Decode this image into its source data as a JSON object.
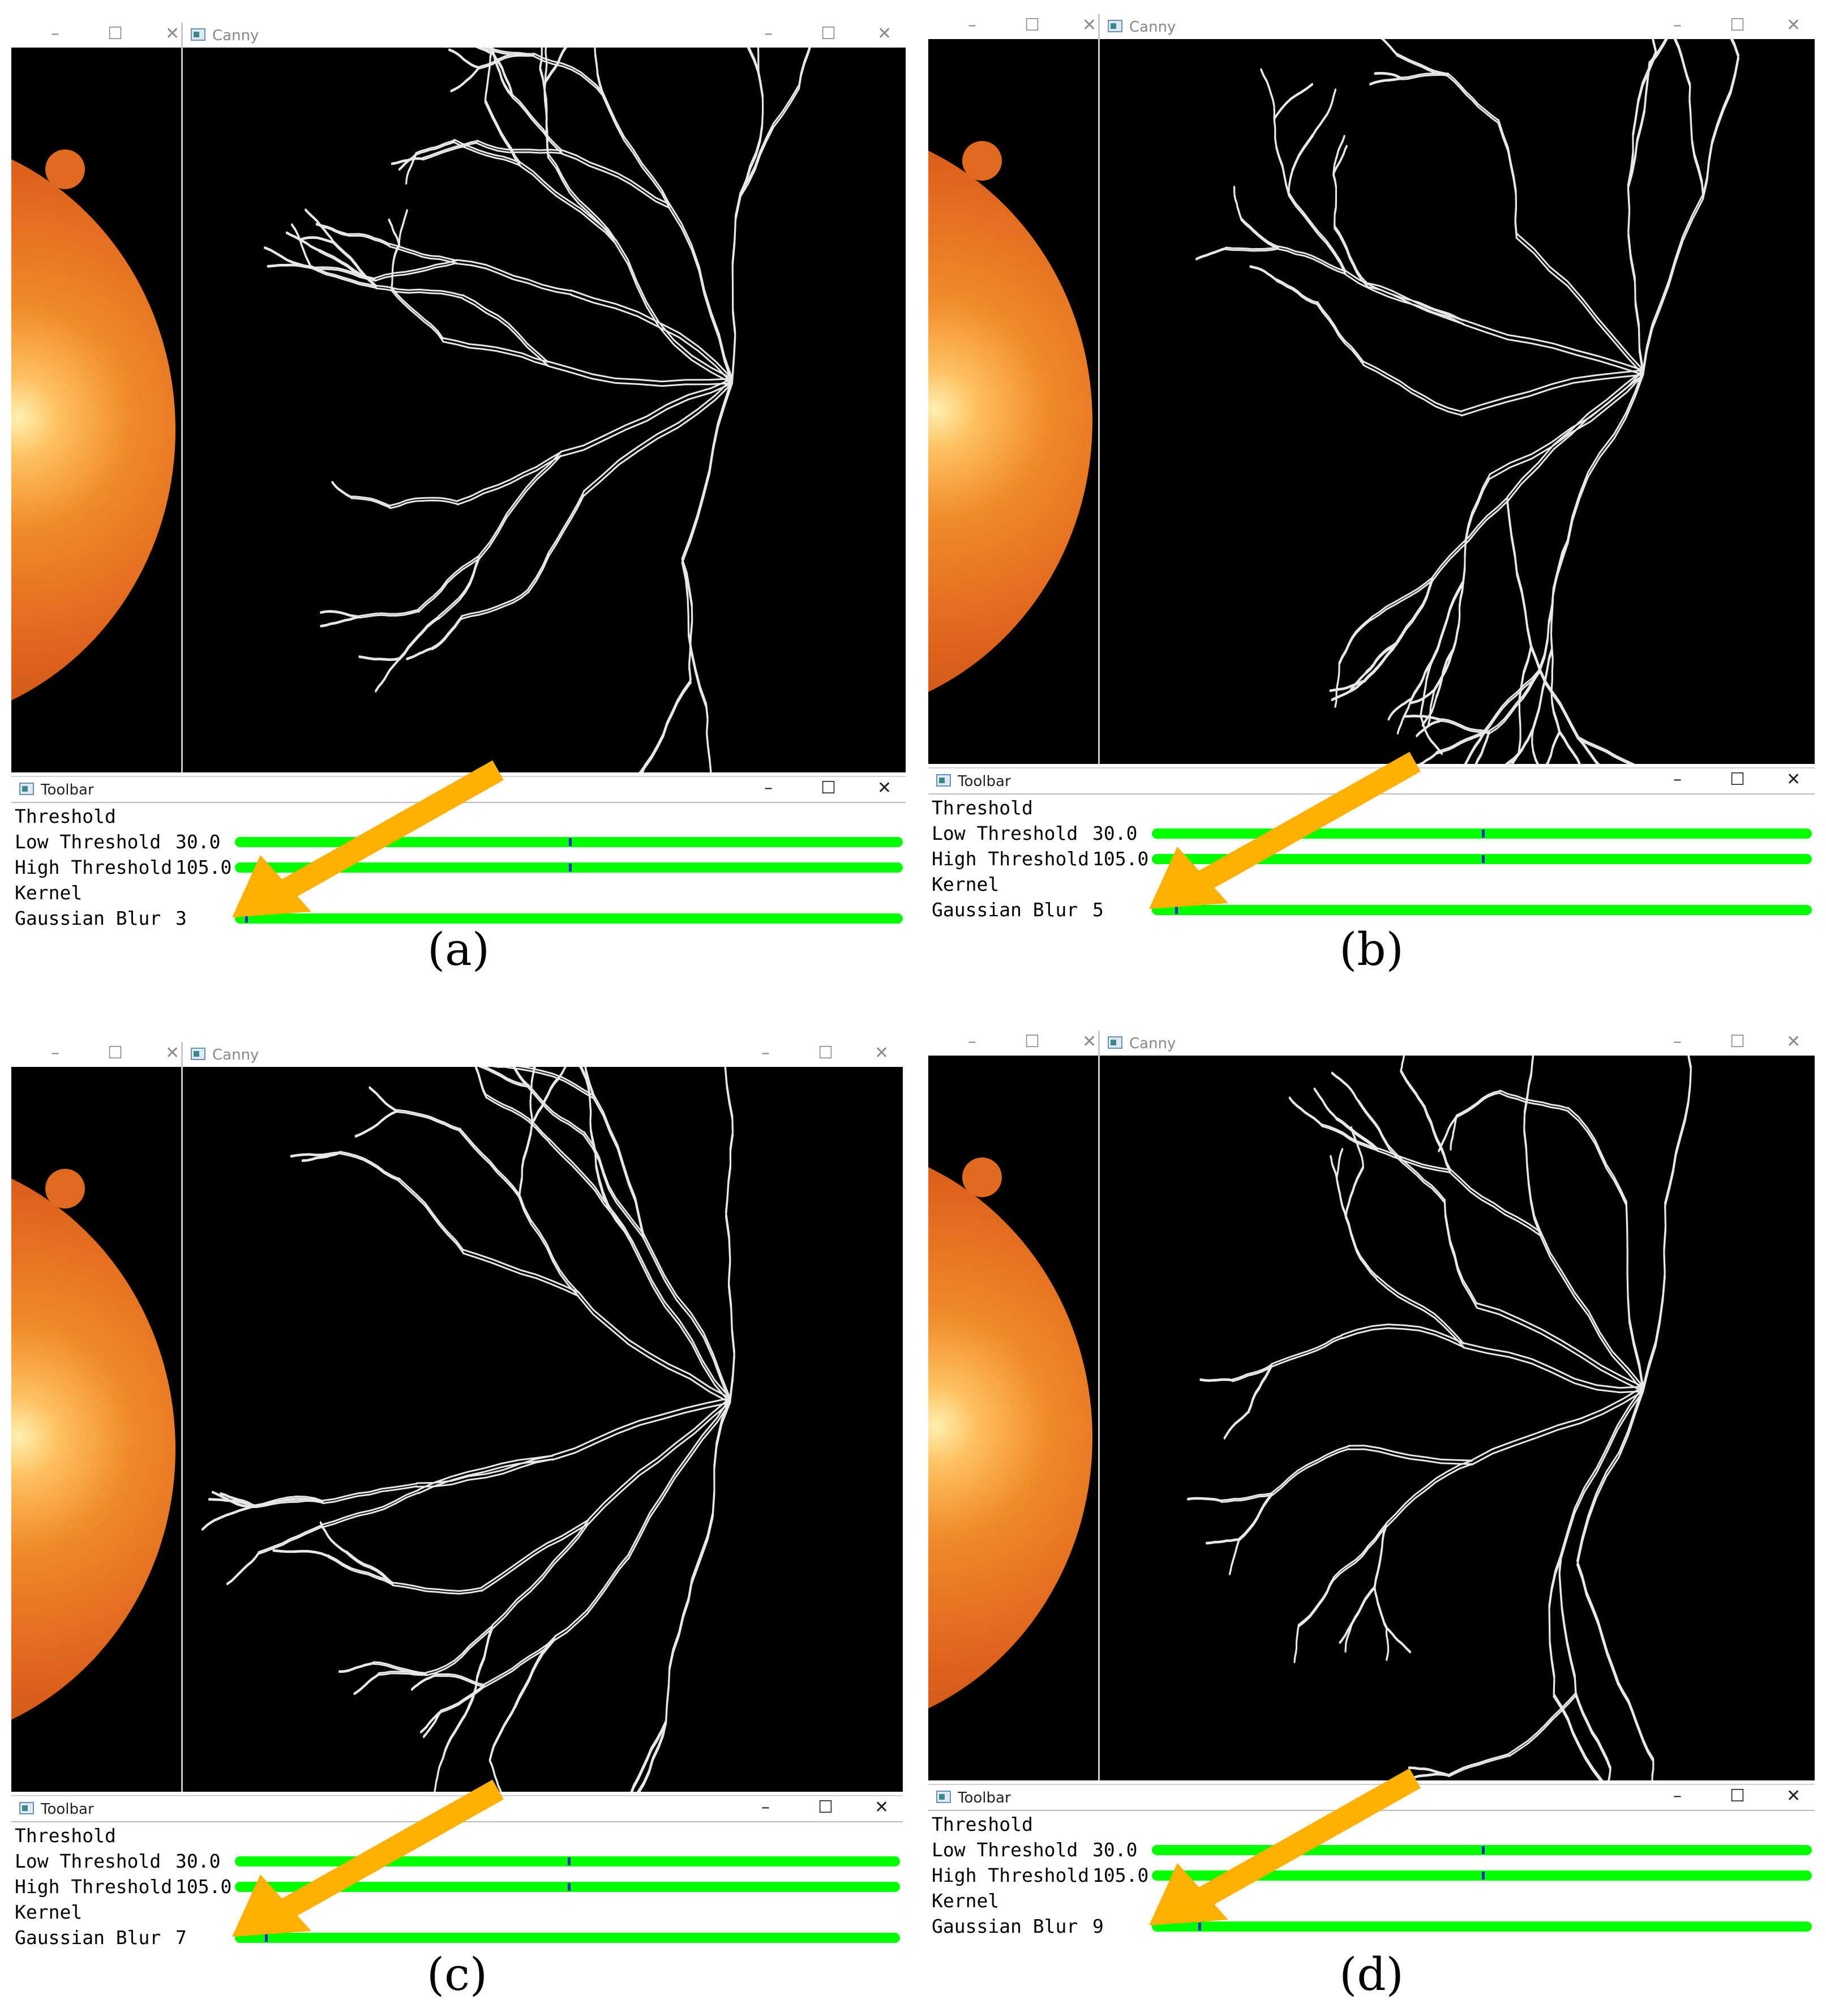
{
  "panels": [
    {
      "id": "a",
      "caption": "(a)",
      "canny_title": "Canny",
      "toolbar_title": "Toolbar",
      "threshold_header": "Threshold",
      "low_label": "Low Threshold",
      "low_value": "30.0",
      "high_label": "High Threshold",
      "high_value": "105.0",
      "kernel_header": "Kernel",
      "blur_label": "Gaussian Blur",
      "blur_value": "3",
      "low_fraction": 0.5,
      "high_fraction": 0.5,
      "blur_fraction": 0.015
    },
    {
      "id": "b",
      "caption": "(b)",
      "canny_title": "Canny",
      "toolbar_title": "Toolbar",
      "threshold_header": "Threshold",
      "low_label": "Low Threshold",
      "low_value": "30.0",
      "high_label": "High Threshold",
      "high_value": "105.0",
      "kernel_header": "Kernel",
      "blur_label": "Gaussian Blur",
      "blur_value": "5",
      "low_fraction": 0.5,
      "high_fraction": 0.5,
      "blur_fraction": 0.035
    },
    {
      "id": "c",
      "caption": "(c)",
      "canny_title": "Canny",
      "toolbar_title": "Toolbar",
      "threshold_header": "Threshold",
      "low_label": "Low Threshold",
      "low_value": "30.0",
      "high_label": "High Threshold",
      "high_value": "105.0",
      "kernel_header": "Kernel",
      "blur_label": "Gaussian Blur",
      "blur_value": "7",
      "low_fraction": 0.5,
      "high_fraction": 0.5,
      "blur_fraction": 0.045
    },
    {
      "id": "d",
      "caption": "(d)",
      "canny_title": "Canny",
      "toolbar_title": "Toolbar",
      "threshold_header": "Threshold",
      "low_label": "Low Threshold",
      "low_value": "30.0",
      "high_label": "High Threshold",
      "high_value": "105.0",
      "kernel_header": "Kernel",
      "blur_label": "Gaussian Blur",
      "blur_value": "9",
      "low_fraction": 0.5,
      "high_fraction": 0.5,
      "blur_fraction": 0.07
    }
  ],
  "window_controls": {
    "minimize": "–",
    "maximize": "☐",
    "close": "✕"
  },
  "colors": {
    "track": "#00ff00",
    "thumb": "#1a2fbf",
    "arrow": "#ffb000",
    "fundus": "#e06a20"
  }
}
